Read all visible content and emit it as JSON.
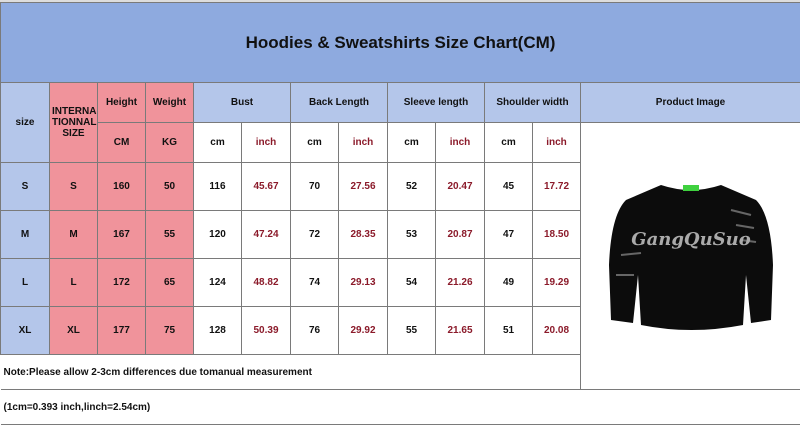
{
  "title": "Hoodies & Sweatshirts Size Chart(CM)",
  "headers": {
    "size": "size",
    "intl": "INTERNA TIONNAL SIZE",
    "height": "Height",
    "weight": "Weight",
    "bust": "Bust",
    "back_length": "Back Length",
    "sleeve_length": "Sleeve length",
    "shoulder_width": "Shoulder width",
    "product_image": "Product Image",
    "cm_unit": "CM",
    "kg_unit": "KG",
    "cm": "cm",
    "inch": "inch"
  },
  "rows": [
    {
      "size": "S",
      "intl": "S",
      "height": "160",
      "weight": "50",
      "bust_cm": "116",
      "bust_in": "45.67",
      "back_cm": "70",
      "back_in": "27.56",
      "sleeve_cm": "52",
      "sleeve_in": "20.47",
      "shoulder_cm": "45",
      "shoulder_in": "17.72"
    },
    {
      "size": "M",
      "intl": "M",
      "height": "167",
      "weight": "55",
      "bust_cm": "120",
      "bust_in": "47.24",
      "back_cm": "72",
      "back_in": "28.35",
      "sleeve_cm": "53",
      "sleeve_in": "20.87",
      "shoulder_cm": "47",
      "shoulder_in": "18.50"
    },
    {
      "size": "L",
      "intl": "L",
      "height": "172",
      "weight": "65",
      "bust_cm": "124",
      "bust_in": "48.82",
      "back_cm": "74",
      "back_in": "29.13",
      "sleeve_cm": "54",
      "sleeve_in": "21.26",
      "shoulder_cm": "49",
      "shoulder_in": "19.29"
    },
    {
      "size": "XL",
      "intl": "XL",
      "height": "177",
      "weight": "75",
      "bust_cm": "128",
      "bust_in": "50.39",
      "back_cm": "76",
      "back_in": "29.92",
      "sleeve_cm": "55",
      "sleeve_in": "21.65",
      "shoulder_cm": "51",
      "shoulder_in": "20.08"
    }
  ],
  "product": {
    "print_text": "GangQuSuo"
  },
  "note": "Note:Please allow 2-3cm differences due tomanual measurement",
  "conversion": "(1cm=0.393  inch,linch=2.54cm)",
  "colors": {
    "title_bg": "#8eaadf",
    "header_bg": "#b4c6ea",
    "pink": "#f0939b",
    "inch_text": "#8b1a2a"
  }
}
